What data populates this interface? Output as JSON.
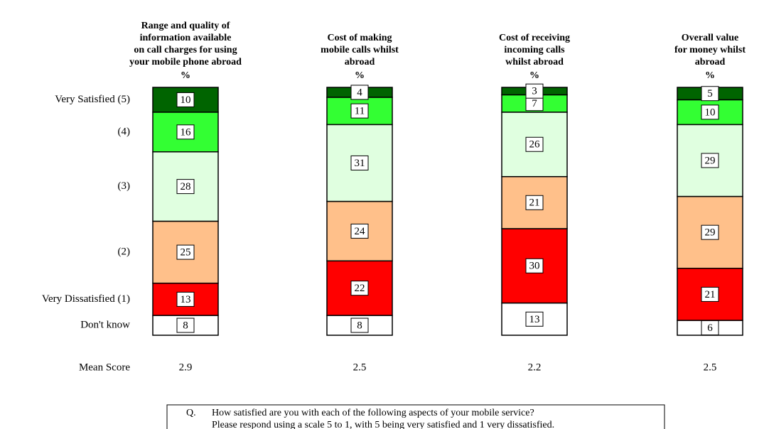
{
  "chart_data": {
    "type": "bar",
    "stacked": true,
    "categories": [
      "Range and quality of\ninformation available\non call charges for using\nyour mobile phone abroad",
      "Cost of making\nmobile calls whilst\nabroad",
      "Cost of receiving\nincoming calls\nwhilst abroad",
      "Overall value\nfor money whilst\nabroad"
    ],
    "unit_label": "%",
    "ylim": [
      0,
      100
    ],
    "series": [
      {
        "name": "Don't know",
        "color": "#ffffff",
        "values": [
          8,
          8,
          13,
          6
        ]
      },
      {
        "name": "Very Dissatisfied (1)",
        "color": "#ff0000",
        "values": [
          13,
          22,
          30,
          21
        ]
      },
      {
        "name": "(2)",
        "color": "#ffc08a",
        "values": [
          25,
          24,
          21,
          29
        ]
      },
      {
        "name": "(3)",
        "color": "#e0ffe0",
        "values": [
          28,
          31,
          26,
          29
        ]
      },
      {
        "name": "(4)",
        "color": "#33ff33",
        "values": [
          16,
          11,
          7,
          10
        ]
      },
      {
        "name": "Very Satisfied (5)",
        "color": "#006400",
        "values": [
          10,
          4,
          3,
          5
        ]
      }
    ],
    "mean_label": "Mean Score",
    "mean_scores": [
      2.9,
      2.5,
      2.2,
      2.5
    ],
    "question": {
      "prefix": "Q.",
      "lines": [
        "How satisfied are you with each of the following aspects of your mobile service?",
        "Please respond using a scale 5 to 1, with 5 being very satisfied and 1 very dissatisfied."
      ]
    }
  }
}
